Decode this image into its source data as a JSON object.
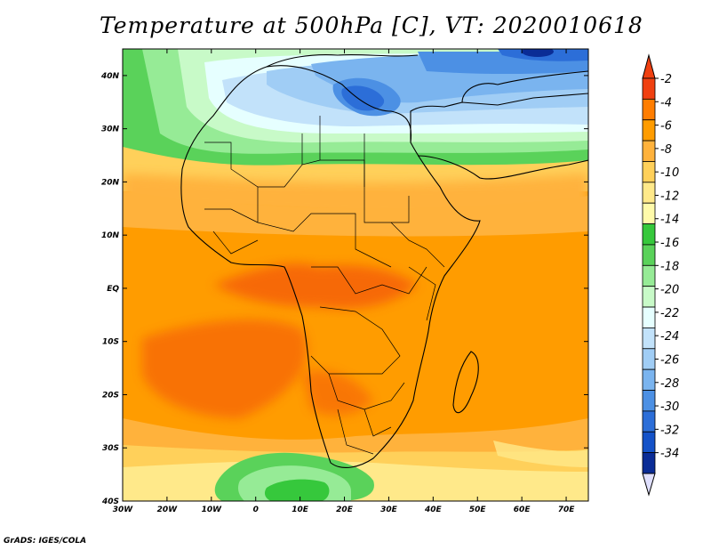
{
  "title": "Temperature at 500hPa [C], VT: 2020010618",
  "credit": "GrADS: IGES/COLA",
  "map": {
    "projection": "latlon",
    "lon_range": [
      -30,
      75
    ],
    "lat_range": [
      -40,
      45
    ],
    "lon_ticks": [
      {
        "value": -30,
        "label": "30W"
      },
      {
        "value": -20,
        "label": "20W"
      },
      {
        "value": -10,
        "label": "10W"
      },
      {
        "value": 0,
        "label": "0"
      },
      {
        "value": 10,
        "label": "10E"
      },
      {
        "value": 20,
        "label": "20E"
      },
      {
        "value": 30,
        "label": "30E"
      },
      {
        "value": 40,
        "label": "40E"
      },
      {
        "value": 50,
        "label": "50E"
      },
      {
        "value": 60,
        "label": "60E"
      },
      {
        "value": 70,
        "label": "70E"
      }
    ],
    "lat_ticks": [
      {
        "value": 40,
        "label": "40N"
      },
      {
        "value": 30,
        "label": "30N"
      },
      {
        "value": 20,
        "label": "20N"
      },
      {
        "value": 10,
        "label": "10N"
      },
      {
        "value": 0,
        "label": "EQ"
      },
      {
        "value": -10,
        "label": "10S"
      },
      {
        "value": -20,
        "label": "20S"
      },
      {
        "value": -30,
        "label": "30S"
      },
      {
        "value": -40,
        "label": "40S"
      }
    ]
  },
  "colorbar": {
    "levels": [
      "-2",
      "-4",
      "-6",
      "-8",
      "-10",
      "-12",
      "-14",
      "-16",
      "-18",
      "-20",
      "-22",
      "-24",
      "-26",
      "-28",
      "-30",
      "-32",
      "-34"
    ],
    "colors": [
      "#f04010",
      "#ff7d00",
      "#ff9c00",
      "#ffb23c",
      "#ffd05a",
      "#ffe98a",
      "#fffaaa",
      "#36c83c",
      "#5ad25a",
      "#96eb96",
      "#c8fac8",
      "#e6ffff",
      "#c2e2fa",
      "#a0cdf5",
      "#7ab4ef",
      "#4c90e4",
      "#2c6ed8",
      "#1452c8",
      "#0a2c96"
    ],
    "top_arrow_color": "#f04010",
    "bottom_arrow_color": "#e0e0ff"
  }
}
